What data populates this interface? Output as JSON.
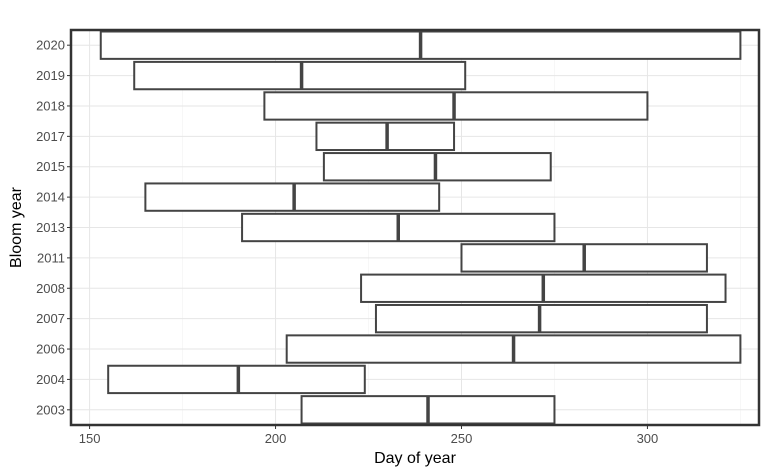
{
  "chart_data": {
    "type": "bar",
    "orientation": "horizontal-range",
    "title": "",
    "xlabel": "Day of year",
    "ylabel": "Bloom year",
    "xlim": [
      145,
      330
    ],
    "xticks": [
      150,
      200,
      250,
      300
    ],
    "grid": true,
    "categories": [
      "2020",
      "2019",
      "2018",
      "2017",
      "2015",
      "2014",
      "2013",
      "2011",
      "2008",
      "2007",
      "2006",
      "2004",
      "2003"
    ],
    "series": [
      {
        "ranges": [
          {
            "category": "2020",
            "start": 153,
            "median": 239,
            "end": 325
          },
          {
            "category": "2019",
            "start": 162,
            "median": 207,
            "end": 251
          },
          {
            "category": "2018",
            "start": 197,
            "median": 248,
            "end": 300
          },
          {
            "category": "2017",
            "start": 211,
            "median": 230,
            "end": 248
          },
          {
            "category": "2015",
            "start": 213,
            "median": 243,
            "end": 274
          },
          {
            "category": "2014",
            "start": 165,
            "median": 205,
            "end": 244
          },
          {
            "category": "2013",
            "start": 191,
            "median": 233,
            "end": 275
          },
          {
            "category": "2011",
            "start": 250,
            "median": 283,
            "end": 316
          },
          {
            "category": "2008",
            "start": 223,
            "median": 272,
            "end": 321
          },
          {
            "category": "2007",
            "start": 227,
            "median": 271,
            "end": 316
          },
          {
            "category": "2006",
            "start": 203,
            "median": 264,
            "end": 325
          },
          {
            "category": "2004",
            "start": 155,
            "median": 190,
            "end": 224
          },
          {
            "category": "2003",
            "start": 207,
            "median": 241,
            "end": 275
          }
        ]
      }
    ],
    "colors": {
      "box_stroke": "#444444",
      "box_fill": "#ffffff",
      "grid_major": "#e6e6e6",
      "grid_minor": "#f2f2f2",
      "panel_border": "#333333"
    }
  }
}
